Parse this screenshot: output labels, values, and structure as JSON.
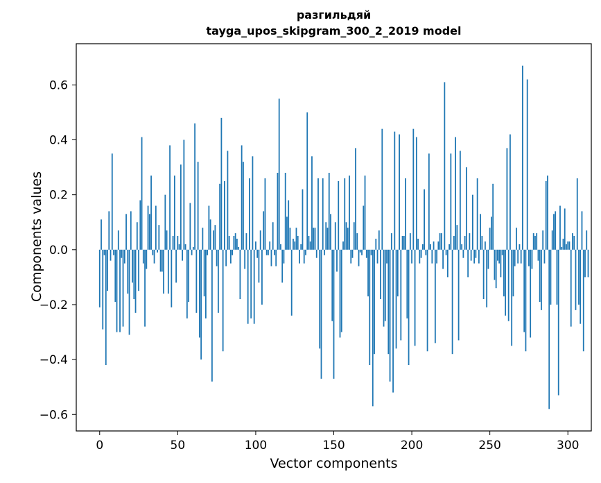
{
  "chart_data": {
    "type": "bar",
    "title": "разгильдяй",
    "subtitle": "tayga_upos_skipgram_300_2_2019 model",
    "xlabel": "Vector components",
    "ylabel": "Components values",
    "xlim": [
      -15,
      315
    ],
    "ylim": [
      -0.66,
      0.75
    ],
    "xticks": [
      0,
      50,
      100,
      150,
      200,
      250,
      300
    ],
    "yticks": [
      -0.6,
      -0.4,
      -0.2,
      0.0,
      0.2,
      0.4,
      0.6
    ],
    "ytick_labels": [
      "−0.6",
      "−0.4",
      "−0.2",
      "0.0",
      "0.2",
      "0.4",
      "0.6"
    ],
    "grid": false,
    "color": "#1f77b4",
    "x_start": 0,
    "values": [
      -0.21,
      0.11,
      -0.29,
      -0.02,
      -0.42,
      -0.15,
      0.14,
      -0.04,
      0.35,
      -0.02,
      -0.19,
      -0.3,
      0.07,
      -0.3,
      -0.03,
      -0.28,
      -0.05,
      0.13,
      -0.16,
      -0.31,
      0.14,
      -0.12,
      -0.18,
      -0.23,
      0.1,
      -0.15,
      0.18,
      0.41,
      -0.05,
      -0.28,
      -0.07,
      0.16,
      0.13,
      0.27,
      -0.02,
      -0.05,
      0.16,
      -0.01,
      0.09,
      -0.08,
      -0.08,
      -0.16,
      0.2,
      0.07,
      -0.16,
      0.38,
      -0.21,
      0.05,
      0.27,
      -0.12,
      0.05,
      0.02,
      0.31,
      -0.04,
      0.4,
      0.02,
      -0.25,
      -0.19,
      0.17,
      -0.02,
      0.01,
      0.46,
      -0.23,
      0.32,
      -0.32,
      -0.4,
      0.08,
      -0.17,
      -0.25,
      -0.02,
      0.16,
      0.11,
      -0.48,
      0.07,
      0.09,
      -0.06,
      -0.23,
      0.24,
      0.48,
      -0.37,
      0.25,
      -0.06,
      0.36,
      0.05,
      -0.05,
      -0.02,
      0.05,
      0.06,
      0.04,
      0.01,
      -0.18,
      0.38,
      0.32,
      -0.07,
      0.06,
      -0.27,
      0.26,
      -0.25,
      0.34,
      -0.27,
      0.03,
      -0.03,
      -0.12,
      0.07,
      -0.2,
      0.14,
      0.26,
      -0.02,
      -0.02,
      0.03,
      -0.06,
      0.1,
      -0.02,
      -0.06,
      0.28,
      0.55,
      0.02,
      -0.12,
      -0.05,
      0.28,
      0.12,
      0.18,
      0.08,
      -0.24,
      0.04,
      0.03,
      0.08,
      0.05,
      -0.05,
      0.02,
      0.22,
      -0.05,
      -0.02,
      0.5,
      0.05,
      0.03,
      0.34,
      0.08,
      0.08,
      -0.03,
      0.26,
      -0.36,
      -0.47,
      0.26,
      -0.02,
      0.1,
      0.08,
      0.28,
      0.13,
      -0.26,
      -0.47,
      0.1,
      -0.08,
      0.25,
      -0.32,
      -0.3,
      0.03,
      0.26,
      0.1,
      0.08,
      0.27,
      -0.05,
      -0.03,
      0.1,
      0.37,
      0.06,
      -0.06,
      -0.01,
      -0.02,
      0.16,
      0.27,
      -0.03,
      -0.17,
      -0.42,
      -0.02,
      -0.57,
      -0.38,
      0.04,
      -0.05,
      0.07,
      -0.18,
      0.44,
      -0.28,
      -0.26,
      -0.05,
      -0.38,
      -0.48,
      0.06,
      -0.52,
      0.43,
      -0.36,
      -0.17,
      0.42,
      -0.33,
      0.05,
      0.05,
      0.26,
      -0.25,
      -0.42,
      0.06,
      -0.05,
      0.44,
      -0.35,
      0.41,
      0.04,
      -0.05,
      -0.03,
      0.02,
      0.22,
      -0.02,
      -0.37,
      0.35,
      0.02,
      -0.05,
      0.03,
      -0.34,
      -0.05,
      0.03,
      0.06,
      0.06,
      -0.07,
      0.61,
      -0.02,
      -0.1,
      0.02,
      0.35,
      -0.38,
      0.05,
      0.41,
      0.09,
      -0.33,
      0.36,
      0.02,
      -0.03,
      0.05,
      0.3,
      -0.1,
      0.06,
      -0.04,
      0.2,
      -0.05,
      -0.03,
      0.26,
      -0.05,
      0.13,
      0.05,
      -0.18,
      0.03,
      -0.21,
      -0.07,
      0.08,
      0.12,
      0.24,
      -0.11,
      -0.14,
      -0.04,
      -0.05,
      -0.1,
      -0.02,
      -0.17,
      -0.24,
      0.37,
      -0.26,
      0.42,
      -0.35,
      -0.17,
      -0.06,
      0.08,
      -0.05,
      0.02,
      -0.05,
      0.67,
      -0.3,
      -0.37,
      0.62,
      -0.06,
      -0.32,
      -0.07,
      0.06,
      0.05,
      0.06,
      -0.04,
      -0.19,
      -0.22,
      0.07,
      -0.05,
      0.25,
      0.27,
      -0.58,
      -0.2,
      0.07,
      0.13,
      0.14,
      -0.2,
      -0.53,
      0.16,
      0.01,
      0.04,
      0.15,
      0.02,
      0.03,
      0.03,
      -0.28,
      0.06,
      0.05,
      -0.22,
      0.26,
      -0.2,
      -0.27,
      0.14,
      -0.37,
      -0.1,
      0.07,
      -0.1
    ]
  }
}
